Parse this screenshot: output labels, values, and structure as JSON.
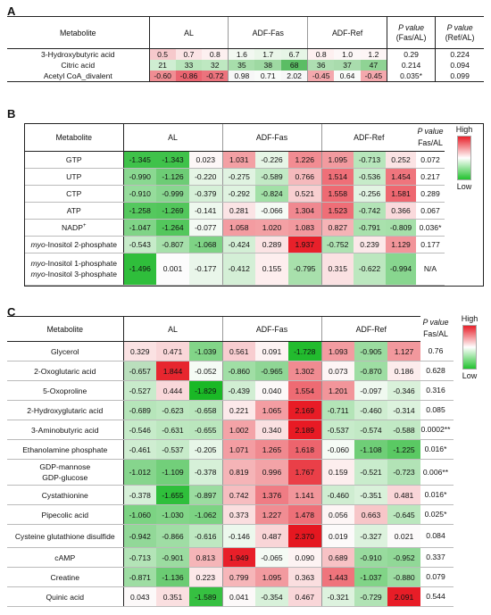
{
  "panelA": {
    "letter": "A",
    "header": {
      "metabolite": "Metabolite",
      "g1": "AL",
      "g2": "ADF-Fas",
      "g3": "ADF-Ref",
      "p1_label": "P value",
      "p1_sub": "(Fas/AL)",
      "p2_label": "P value",
      "p2_sub": "(Ref/AL)"
    },
    "rows": [
      {
        "name": "3-Hydroxybutyric acid",
        "values": [
          "0.5",
          "0.7",
          "0.8",
          "1.6",
          "1.7",
          "6.7",
          "0.8",
          "1.0",
          "1.2"
        ],
        "p1": "0.29",
        "p2": "0.224",
        "colors": [
          "#f6c9cc",
          "#fbe4e5",
          "#fdf0f0",
          "#f2f8f1",
          "#eaf6e9",
          "#e6f5e6",
          "#fdf0f0",
          "#fcf7f7",
          "#fdf5f5"
        ]
      },
      {
        "name": "Citric acid",
        "values": [
          "21",
          "33",
          "32",
          "35",
          "38",
          "68",
          "36",
          "37",
          "47"
        ],
        "p1": "0.214",
        "p2": "0.094",
        "colors": [
          "#cfeed2",
          "#b8e5bb",
          "#bee8c1",
          "#a7deab",
          "#9ed9a2",
          "#5bbd64",
          "#aedfb2",
          "#a9dcad",
          "#8fd394"
        ]
      },
      {
        "name": "Acetyl CoA_divalent",
        "values": [
          "-0.60",
          "-0.86",
          "-0.72",
          "0.98",
          "0.71",
          "2.02",
          "-0.45",
          "0.64",
          "-0.45"
        ],
        "p1": "0.035*",
        "p2": "0.099",
        "colors": [
          "#f08d93",
          "#ea6470",
          "#ec737d",
          "#f7f7f7",
          "#f9fbf9",
          "#f7f7f7",
          "#f4a8ad",
          "#f9fbf9",
          "#f4a8ad"
        ]
      }
    ]
  },
  "panelB": {
    "letter": "B",
    "header": {
      "metabolite": "Metabolite",
      "g1": "AL",
      "g2": "ADF-Fas",
      "g3": "ADF-Ref",
      "p_label": "P value",
      "p_sub": "Fas/AL"
    },
    "legend": {
      "high": "High",
      "low": "Low"
    },
    "rows": [
      {
        "name": "GTP",
        "values": [
          "-1.345",
          "-1.343",
          "0.023",
          "1.031",
          "-0.226",
          "1.226",
          "1.095",
          "-0.713",
          "0.252"
        ],
        "p": "0.072",
        "colors": [
          "#3fc24a",
          "#3fc24a",
          "#fdf7f7",
          "#f3a0a4",
          "#e6f5e6",
          "#f28c92",
          "#f29a9f",
          "#b7e6bb",
          "#fbe3e4"
        ]
      },
      {
        "name": "UTP",
        "values": [
          "-0.990",
          "-1.126",
          "-0.220",
          "-0.275",
          "-0.589",
          "0.766",
          "1.514",
          "-0.536",
          "1.454"
        ],
        "p": "0.217",
        "colors": [
          "#8ad891",
          "#6dcc75",
          "#e6f5e6",
          "#e0f3e1",
          "#c2e9c5",
          "#f5b9bc",
          "#ef6f78",
          "#c6ebc9",
          "#ef757d"
        ]
      },
      {
        "name": "CTP",
        "values": [
          "-0.910",
          "-0.999",
          "-0.379",
          "-0.292",
          "-0.824",
          "0.521",
          "1.558",
          "-0.256",
          "1.581"
        ],
        "p": "0.289",
        "colors": [
          "#96dc9c",
          "#88d68f",
          "#d6f0d8",
          "#dff3e0",
          "#a2e0a7",
          "#f8cfd1",
          "#ee6a73",
          "#e2f4e3",
          "#ee6770"
        ]
      },
      {
        "name": "ATP",
        "values": [
          "-1.258",
          "-1.269",
          "-0.141",
          "0.281",
          "-0.066",
          "1.304",
          "1.523",
          "-0.742",
          "0.366"
        ],
        "p": "0.067",
        "colors": [
          "#55c85e",
          "#52c65b",
          "#eef8ee",
          "#fbe4e5",
          "#f5fbf5",
          "#f08890",
          "#ef6e77",
          "#b3e4b7",
          "#fadadc"
        ]
      },
      {
        "name": "NADP+",
        "values": [
          "-1.047",
          "-1.264",
          "-0.077",
          "1.058",
          "1.020",
          "1.083",
          "0.827",
          "-0.791",
          "-0.809"
        ],
        "p": "0.036*",
        "colors": [
          "#80d487",
          "#53c75c",
          "#f3faf3",
          "#f39ca1",
          "#f3a0a4",
          "#f2999e",
          "#f5b3b6",
          "#a9e1ad",
          "#a6e0aa"
        ]
      },
      {
        "name": "myo-Inositol 2-phosphate",
        "values": [
          "-0.543",
          "-0.807",
          "-1.068",
          "-0.424",
          "0.289",
          "1.937",
          "-0.752",
          "0.239",
          "1.129"
        ],
        "p": "0.177",
        "colors": [
          "#c7ebca",
          "#a7e0ab",
          "#7ed385",
          "#d3efd5",
          "#fbe3e4",
          "#e8202a",
          "#aee2b2",
          "#fce8e9",
          "#f2959a"
        ]
      },
      {
        "name": "myo-Inositol 1-phosphate\nmyo-Inositol 3-phosphate",
        "values": [
          "-1.496",
          "0.001",
          "-0.177",
          "-0.412",
          "0.155",
          "-0.795",
          "0.315",
          "-0.622",
          "-0.994"
        ],
        "p": "N/A",
        "colors": [
          "#2fbe3b",
          "#fcfcfc",
          "#e9f6ea",
          "#d4efd6",
          "#fdeeee",
          "#a8e0ac",
          "#fae1e2",
          "#bce7bf",
          "#88d68f"
        ]
      }
    ]
  },
  "panelC": {
    "letter": "C",
    "header": {
      "metabolite": "Metabolite",
      "g1": "AL",
      "g2": "ADF-Fas",
      "g3": "ADF-Ref",
      "p_label": "P value",
      "p_sub": "Fas/AL"
    },
    "legend": {
      "high": "High",
      "low": "Low"
    },
    "rows": [
      {
        "name": "Glycerol",
        "values": [
          "0.329",
          "0.471",
          "-1.039",
          "0.561",
          "0.091",
          "-1.728",
          "1.093",
          "-0.905",
          "1.127"
        ],
        "p": "0.76",
        "colors": [
          "#fbe2e3",
          "#f9d6d8",
          "#82d588",
          "#f8cdd0",
          "#fdf3f3",
          "#22bb2e",
          "#f39ca1",
          "#9bdca0",
          "#f2989d"
        ]
      },
      {
        "name": "2-Oxoglutaric acid",
        "values": [
          "-0.657",
          "1.844",
          "-0.052",
          "-0.860",
          "-0.965",
          "1.302",
          "0.073",
          "-0.870",
          "0.186"
        ],
        "p": "0.628",
        "colors": [
          "#badfbd",
          "#e7262f",
          "#f5fbf5",
          "#a0dea5",
          "#8fd695",
          "#f08b91",
          "#fdf5f5",
          "#9edda3",
          "#fcecec"
        ]
      },
      {
        "name": "5-Oxoproline",
        "values": [
          "-0.527",
          "0.444",
          "-1.829",
          "-0.439",
          "0.040",
          "1.554",
          "1.201",
          "-0.097",
          "-0.346"
        ],
        "p": "0.316",
        "colors": [
          "#c8ebcb",
          "#f9d8da",
          "#1ab826",
          "#d1eed3",
          "#fcf8f8",
          "#ee6b73",
          "#f2959a",
          "#f0f9f0",
          "#d9f1da"
        ]
      },
      {
        "name": "2-Hydroxyglutaric acid",
        "values": [
          "-0.689",
          "-0.623",
          "-0.658",
          "0.221",
          "1.065",
          "2.169",
          "-0.711",
          "-0.460",
          "-0.314"
        ],
        "p": "0.085",
        "colors": [
          "#b6e5ba",
          "#bde8c0",
          "#bae6bd",
          "#fce9ea",
          "#f39da2",
          "#e81c26",
          "#b3e4b7",
          "#cfedd1",
          "#dcf2dd"
        ]
      },
      {
        "name": "3-Aminobutyric acid",
        "values": [
          "-0.546",
          "-0.631",
          "-0.655",
          "1.002",
          "0.340",
          "2.189",
          "-0.537",
          "-0.574",
          "-0.588"
        ],
        "p": "0.0002**",
        "colors": [
          "#c6ebc9",
          "#bce7bf",
          "#bae6bd",
          "#f3a3a7",
          "#fae0e1",
          "#e81a24",
          "#c7ebca",
          "#c2e9c5",
          "#c1e9c4"
        ]
      },
      {
        "name": "Ethanolamine phosphate",
        "values": [
          "-0.461",
          "-0.537",
          "-0.205",
          "1.071",
          "1.265",
          "1.618",
          "-0.060",
          "-1.108",
          "-1.225"
        ],
        "p": "0.016*",
        "colors": [
          "#cfedd1",
          "#c7ebca",
          "#e7f6e8",
          "#f39da2",
          "#f0898f",
          "#ed646d",
          "#f5fbf5",
          "#6fce77",
          "#5ac963"
        ]
      },
      {
        "name": "GDP-mannose\nGDP-glucose",
        "values": [
          "-1.012",
          "-1.109",
          "-0.378",
          "0.819",
          "0.996",
          "1.767",
          "0.159",
          "-0.521",
          "-0.723"
        ],
        "p": "0.006**",
        "colors": [
          "#86d58d",
          "#72cf7a",
          "#d6f0d8",
          "#f5b4b7",
          "#f3a3a7",
          "#ea3f48",
          "#fdeeee",
          "#c9eccc",
          "#b2e3b6"
        ]
      },
      {
        "name": "Cystathionine",
        "values": [
          "-0.378",
          "-1.655",
          "-0.897",
          "0.742",
          "1.376",
          "1.141",
          "-0.460",
          "-0.351",
          "0.481"
        ],
        "p": "0.016*",
        "colors": [
          "#d6f0d8",
          "#2fbf3b",
          "#9bdca0",
          "#f6bdc0",
          "#ef7c84",
          "#f2969b",
          "#cfedd1",
          "#d9f1da",
          "#f9d6d8"
        ]
      },
      {
        "name": "Pipecolic acid",
        "values": [
          "-1.060",
          "-1.030",
          "-1.062",
          "0.373",
          "1.227",
          "1.478",
          "0.056",
          "0.663",
          "-0.645"
        ],
        "p": "0.025*",
        "colors": [
          "#7cd383",
          "#82d588",
          "#7cd383",
          "#fadedf",
          "#f08d93",
          "#ee7078",
          "#fdf5f5",
          "#f7c6c8",
          "#bbe7be"
        ]
      },
      {
        "name": "Cysteine glutathione disulfide",
        "values": [
          "-0.942",
          "-0.866",
          "-0.616",
          "-0.146",
          "0.487",
          "2.370",
          "0.019",
          "-0.327",
          "0.021"
        ],
        "p": "0.084",
        "colors": [
          "#92d898",
          "#9fdda4",
          "#beE8c1",
          "#ecf8ed",
          "#f9d5d7",
          "#e51720",
          "#fcfafa",
          "#dcf2dd",
          "#fcfafa"
        ]
      },
      {
        "name": "cAMP",
        "values": [
          "-0.713",
          "-0.901",
          "0.813",
          "1.949",
          "-0.065",
          "0.090",
          "0.689",
          "-0.910",
          "-0.952"
        ],
        "p": "0.337",
        "colors": [
          "#b3e4b7",
          "#9bdca0",
          "#f5b5b8",
          "#e81f29",
          "#f4faf4",
          "#fdf3f3",
          "#f7c2c5",
          "#98db9e",
          "#91d897"
        ]
      },
      {
        "name": "Creatine",
        "values": [
          "-0.871",
          "-1.136",
          "0.223",
          "0.799",
          "1.095",
          "0.363",
          "1.443",
          "-1.037",
          "-0.880"
        ],
        "p": "0.079",
        "colors": [
          "#9edda3",
          "#6bcc73",
          "#fce8e9",
          "#f6b6b9",
          "#f29a9f",
          "#fadedf",
          "#ef747c",
          "#81d487",
          "#9ddca2"
        ]
      },
      {
        "name": "Quinic acid",
        "values": [
          "0.043",
          "0.351",
          "-1.589",
          "0.041",
          "-0.354",
          "0.467",
          "-0.321",
          "-0.729",
          "2.091"
        ],
        "p": "0.544",
        "colors": [
          "#fcf9f9",
          "#fadfe0",
          "#36c041",
          "#fcf9f9",
          "#d8f1da",
          "#f9d6d8",
          "#ddf2de",
          "#b1e3b5",
          "#e81d27"
        ]
      }
    ]
  }
}
